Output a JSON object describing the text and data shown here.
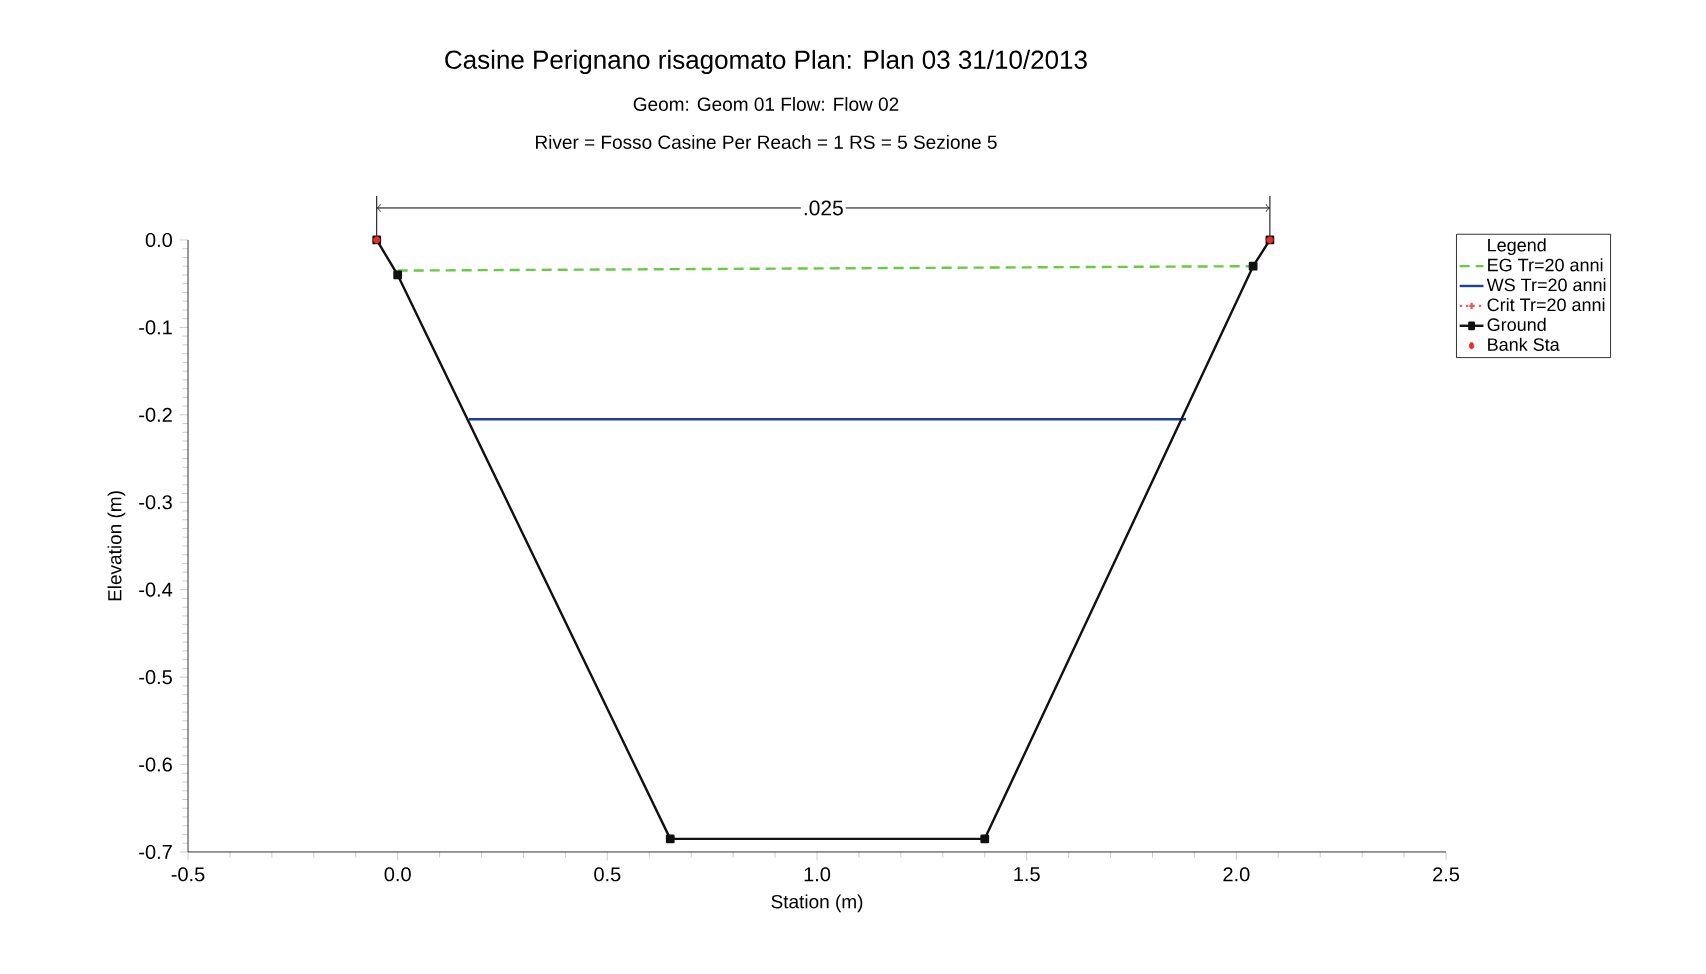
{
  "chart_data": {
    "type": "line",
    "title": "Casine Perignano risagomato      Plan: Plan 03    31/10/2013",
    "subtitle": "Geom: Geom 01    Flow: Flow 02",
    "annotations": [
      "River = Fosso Casine Per   Reach = 1      RS = 5    Sezione 5",
      ".025"
    ],
    "xlabel": "Station (m)",
    "ylabel": "Elevation (m)",
    "legend_title": "Legend",
    "xlim": [
      -0.5,
      2.5
    ],
    "ylim": [
      -0.7,
      0.0
    ],
    "xticks": [
      -0.5,
      {
        "value": 0,
        "label": "0.0"
      },
      0.5,
      {
        "value": 1,
        "label": "1.0"
      },
      1.5,
      {
        "value": 2,
        "label": "2.0"
      },
      2.5
    ],
    "yticks": [
      -0.7,
      -0.6,
      -0.5,
      -0.4,
      -0.3,
      -0.2,
      -0.1,
      {
        "value": 0,
        "label": "0.0"
      }
    ],
    "legend": "right",
    "grid": false,
    "series": [
      {
        "name": "EG Tr=20 anni",
        "line_style": "dashed",
        "marker": "none",
        "color": "#66cc44",
        "x": [
          0.0,
          2.04
        ],
        "values": [
          -0.035,
          -0.03
        ]
      },
      {
        "name": "WS Tr=20 anni",
        "line_style": "solid",
        "marker": "none",
        "color": "#1f3fa0",
        "x": [
          0.17,
          1.88
        ],
        "values": [
          -0.205,
          -0.205
        ]
      },
      {
        "name": "Crit Tr=20 anni",
        "line_style": "dotted",
        "marker": "cross",
        "color": "#e06060",
        "values": [
          null
        ]
      },
      {
        "name": "Ground",
        "line_style": "solid",
        "marker": "square",
        "color": "#111111",
        "x": [
          -0.05,
          0.0,
          0.65,
          1.4,
          2.04,
          2.08
        ],
        "values": [
          0.0,
          -0.04,
          -0.685,
          -0.685,
          -0.03,
          0.0
        ]
      },
      {
        "name": "Bank Sta",
        "type": "scatter",
        "marker": "circle",
        "color": "#e8302a",
        "x": [
          -0.05,
          2.08
        ],
        "values": [
          0.0,
          0.0
        ]
      }
    ]
  }
}
